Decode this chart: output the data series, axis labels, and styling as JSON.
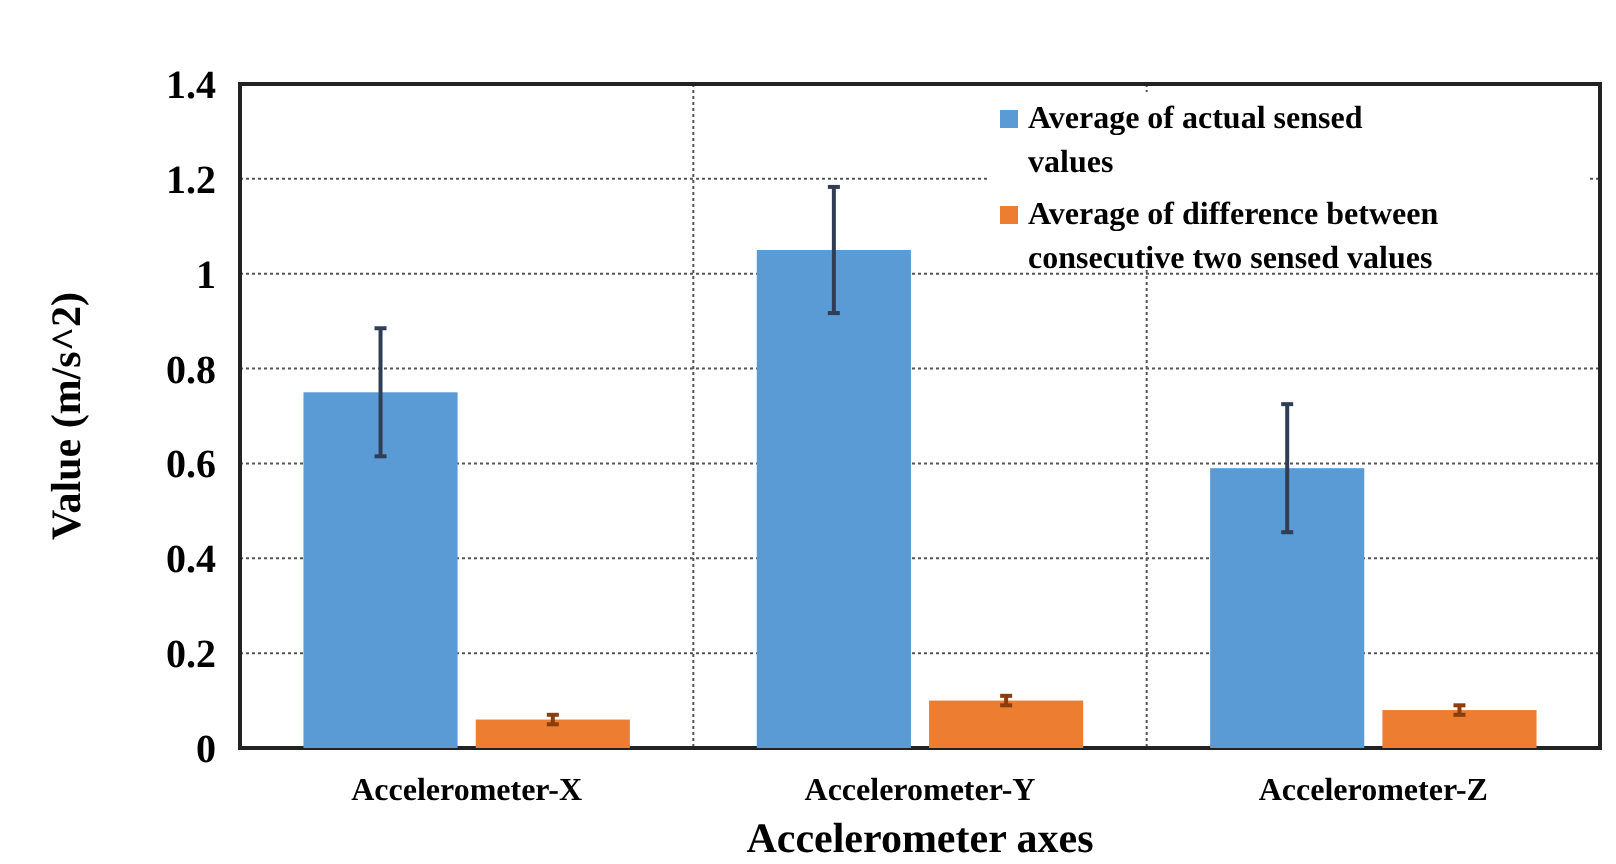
{
  "chart_data": {
    "type": "bar",
    "xlabel": "Accelerometer axes",
    "ylabel": "Value (m/s^2)",
    "categories": [
      "Accelerometer-X",
      "Accelerometer-Y",
      "Accelerometer-Z"
    ],
    "series": [
      {
        "name": "Average of actual sensed values",
        "color": "#5b9bd5",
        "values": [
          0.75,
          1.05,
          0.59
        ],
        "errors": [
          0.135,
          0.133,
          0.135
        ]
      },
      {
        "name": "Average of difference between consecutive two sensed values",
        "color": "#ed7d31",
        "values": [
          0.06,
          0.1,
          0.08
        ],
        "errors": [
          0.01,
          0.01,
          0.01
        ]
      }
    ],
    "ylim": [
      0,
      1.4
    ],
    "yticks": [
      0,
      {
        "value": 0.2,
        "label": "0.2"
      },
      {
        "value": 0.4,
        "label": "0.4"
      },
      {
        "value": 0.6,
        "label": "0.6"
      },
      {
        "value": 0.8,
        "label": "0.8"
      },
      1,
      {
        "value": 1.2,
        "label": "1.2"
      },
      {
        "value": 1.4,
        "label": "1.4"
      }
    ],
    "grid": true,
    "legend": "top right"
  }
}
